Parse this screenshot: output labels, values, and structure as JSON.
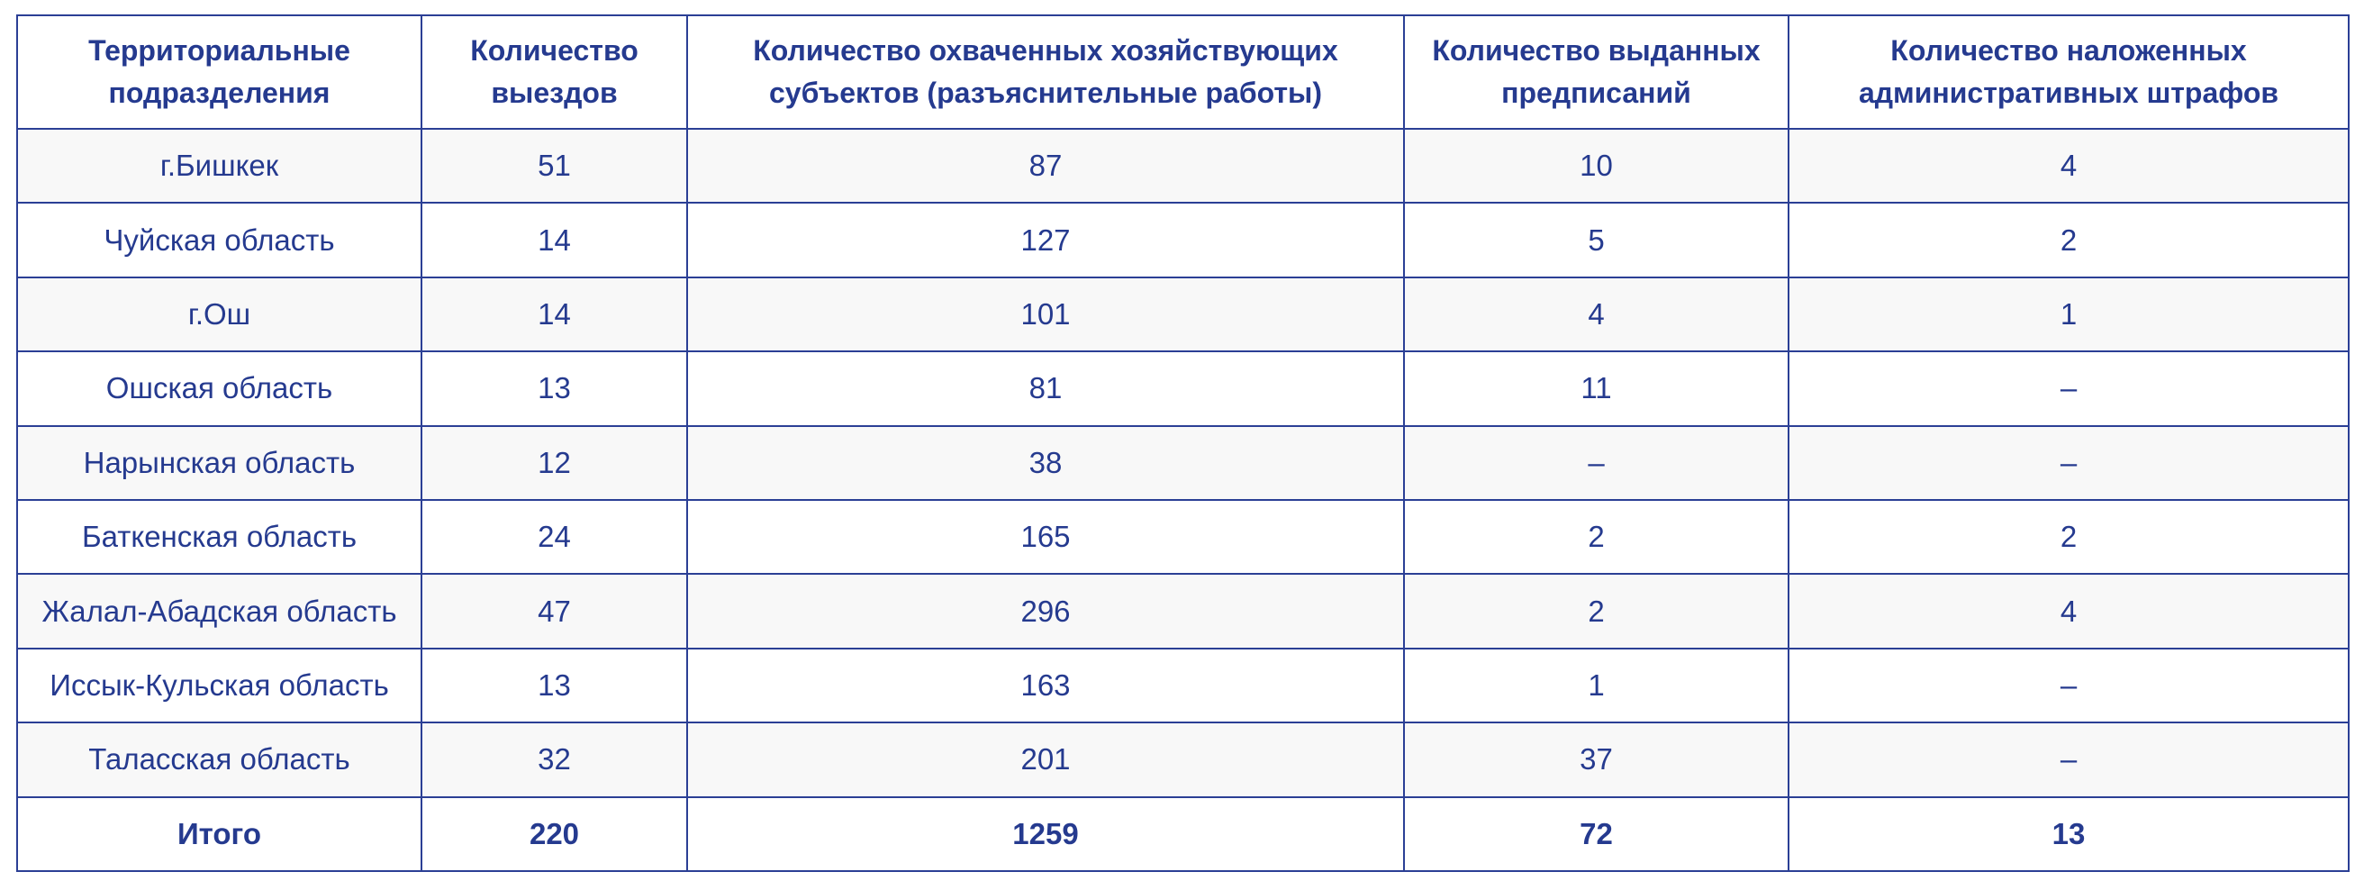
{
  "table": {
    "headers": [
      "Территориальные подразделения",
      "Количество выездов",
      "Количество охваченных хозяйствующих субъектов (разъяснительные работы)",
      "Количество выданных предписаний",
      "Количество наложенных административных штрафов"
    ],
    "rows": [
      [
        "г.Бишкек",
        "51",
        "87",
        "10",
        "4"
      ],
      [
        "Чуйская область",
        "14",
        "127",
        "5",
        "2"
      ],
      [
        "г.Ош",
        "14",
        "101",
        "4",
        "1"
      ],
      [
        "Ошская область",
        "13",
        "81",
        "11",
        "–"
      ],
      [
        "Нарынская область",
        "12",
        "38",
        "–",
        "–"
      ],
      [
        "Баткенская область",
        "24",
        "165",
        "2",
        "2"
      ],
      [
        "Жалал-Абадская область",
        "47",
        "296",
        "2",
        "4"
      ],
      [
        "Иссык-Кульская область",
        "13",
        "163",
        "1",
        "–"
      ],
      [
        "Таласская область",
        "32",
        "201",
        "37",
        "–"
      ]
    ],
    "total": [
      "Итого",
      "220",
      "1259",
      "72",
      "13"
    ]
  },
  "colors": {
    "text": "#253a8f",
    "border": "#2b3f95",
    "row_stripe": "#f8f8f8"
  }
}
